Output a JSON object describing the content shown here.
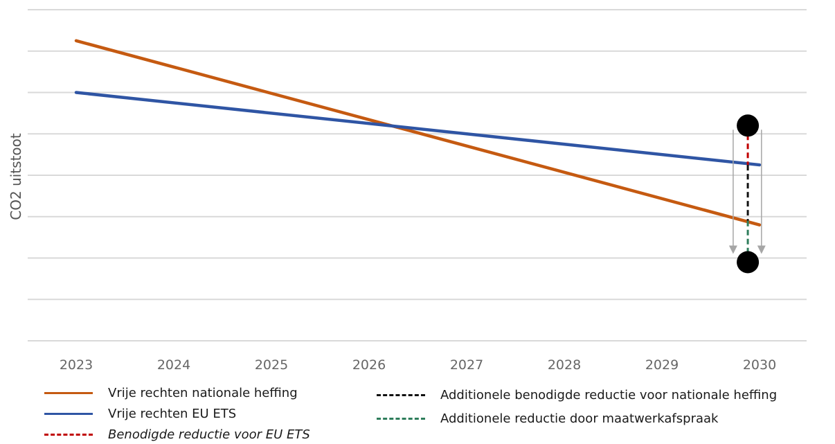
{
  "chart_data": {
    "type": "line",
    "title": "",
    "xlabel": "",
    "ylabel": "CO2 uitstoot",
    "categories": [
      "2023",
      "2024",
      "2025",
      "2026",
      "2027",
      "2028",
      "2029",
      "2030"
    ],
    "ylim": [
      0,
      8
    ],
    "grid": true,
    "legend_position": "bottom",
    "series": [
      {
        "name": "Vrije rechten nationale heffing",
        "color": "#C55A11",
        "style": "solid",
        "x": [
          2023,
          2030
        ],
        "y": [
          7.25,
          2.8
        ]
      },
      {
        "name": "Vrije rechten EU ETS",
        "color": "#2F55A4",
        "style": "solid",
        "x": [
          2023,
          2030
        ],
        "y": [
          6.0,
          4.25
        ]
      },
      {
        "name": "Benodigde reductie voor EU ETS",
        "color": "#C00000",
        "style": "dashed",
        "x": [
          2029.88,
          2029.88
        ],
        "y": [
          5.2,
          4.25
        ]
      },
      {
        "name": "Additionele benodigde reductie voor nationale heffing",
        "color": "#111111",
        "style": "dashed",
        "x": [
          2029.88,
          2029.88
        ],
        "y": [
          4.25,
          2.9
        ]
      },
      {
        "name": "Additionele reductie door maatwerkafspraak",
        "color": "#2E7D5B",
        "style": "dashed",
        "x": [
          2029.88,
          2029.88
        ],
        "y": [
          2.9,
          1.9
        ]
      }
    ],
    "annotations": {
      "markers": [
        {
          "x": 2029.88,
          "y": 5.2
        },
        {
          "x": 2029.88,
          "y": 1.9
        }
      ],
      "arrows": [
        {
          "x": 2029.73,
          "y_from": 5.1,
          "y_to": 2.2
        },
        {
          "x": 2030.02,
          "y_from": 5.1,
          "y_to": 2.2
        }
      ],
      "marker_color": "#000000",
      "arrow_color": "#A6A6A6"
    }
  }
}
